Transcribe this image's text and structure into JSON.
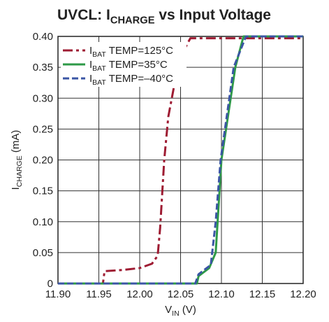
{
  "chart_data": {
    "type": "line",
    "title": [
      "UVCL: I",
      "CHARGE",
      " vs Input Voltage"
    ],
    "xlabel": [
      "V",
      "IN",
      " (V)"
    ],
    "ylabel": [
      "I",
      "CHARGE",
      " (mA)"
    ],
    "xlim": [
      11.9,
      12.2
    ],
    "ylim": [
      0,
      0.4
    ],
    "xticks": [
      {
        "value": 11.9,
        "label": "11.90"
      },
      11.95,
      {
        "value": 12.0,
        "label": "12.00"
      },
      12.05,
      {
        "value": 12.1,
        "label": "12.10"
      },
      12.15,
      {
        "value": 12.2,
        "label": "12.20"
      }
    ],
    "yticks": [
      0,
      0.05,
      {
        "value": 0.1,
        "label": "0.10"
      },
      0.15,
      {
        "value": 0.2,
        "label": "0.20"
      },
      0.25,
      {
        "value": 0.3,
        "label": "0.30"
      },
      0.35,
      {
        "value": 0.4,
        "label": "0.40"
      }
    ],
    "grid": true,
    "legend": "upper left",
    "series": [
      {
        "name": [
          "I",
          "BAT",
          " TEMP=125°C"
        ],
        "color": "#9e1b32",
        "style": "dashdot",
        "x": [
          11.9,
          11.955,
          11.957,
          11.98,
          12.0,
          12.015,
          12.022,
          12.025,
          12.03,
          12.035,
          12.045,
          12.055,
          12.062,
          12.1,
          12.2
        ],
        "values": [
          0,
          0,
          0.02,
          0.022,
          0.025,
          0.032,
          0.045,
          0.09,
          0.2,
          0.27,
          0.34,
          0.38,
          0.397,
          0.397,
          0.397
        ]
      },
      {
        "name": [
          "I",
          "BAT",
          " TEMP=35°C"
        ],
        "color": "#2e9a47",
        "style": "solid",
        "x": [
          11.9,
          12.07,
          12.072,
          12.085,
          12.093,
          12.1,
          12.117,
          12.127,
          12.2
        ],
        "values": [
          0,
          0,
          0.012,
          0.025,
          0.05,
          0.2,
          0.35,
          0.4,
          0.4
        ]
      },
      {
        "name": [
          "I",
          "BAT",
          " TEMP=–40°C"
        ],
        "color": "#3a55a4",
        "style": "dashed",
        "x": [
          11.9,
          12.068,
          12.072,
          12.087,
          12.093,
          12.099,
          12.115,
          12.13,
          12.2
        ],
        "values": [
          0,
          0,
          0.015,
          0.03,
          0.1,
          0.2,
          0.35,
          0.4,
          0.4
        ]
      }
    ]
  }
}
